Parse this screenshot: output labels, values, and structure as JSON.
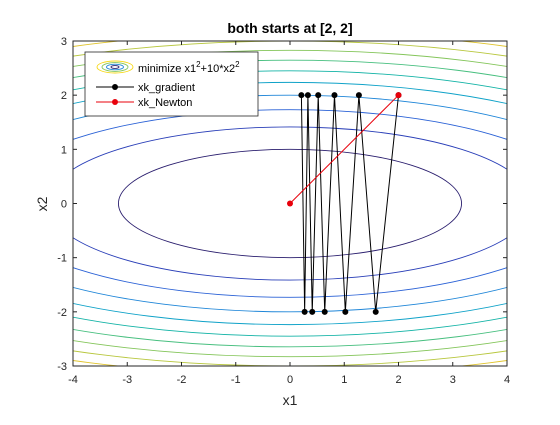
{
  "chart_data": {
    "type": "line",
    "title": "both starts at [2, 2]",
    "xlabel": "x1",
    "ylabel": "x2",
    "xlim": [
      -4,
      4
    ],
    "ylim": [
      -3,
      3
    ],
    "x_ticks": [
      -4,
      -3,
      -2,
      -1,
      0,
      1,
      2,
      3,
      4
    ],
    "y_ticks": [
      -3,
      -2,
      -1,
      0,
      1,
      2,
      3
    ],
    "grid": false,
    "legend_position": "top-left",
    "contours": {
      "function": "x1^2 + 10*x2^2",
      "levels": [
        10,
        20,
        30,
        40,
        50,
        60,
        70,
        80,
        90,
        100,
        110
      ],
      "colors": [
        "#2a1e6e",
        "#2a3fb8",
        "#2b62d6",
        "#1f86d8",
        "#0fa2c8",
        "#13b3a6",
        "#47bf7f",
        "#84c55a",
        "#b8c73e",
        "#e0c42e",
        "#f6d818"
      ]
    },
    "series": [
      {
        "name": "xk_gradient",
        "color": "#000000",
        "marker": "circle",
        "points": [
          [
            2.0,
            2.0
          ],
          [
            1.58,
            -2.0
          ],
          [
            1.27,
            2.0
          ],
          [
            1.02,
            -2.0
          ],
          [
            0.82,
            2.0
          ],
          [
            0.64,
            -2.0
          ],
          [
            0.52,
            2.0
          ],
          [
            0.41,
            -2.0
          ],
          [
            0.33,
            2.0
          ],
          [
            0.27,
            -2.0
          ],
          [
            0.21,
            2.0
          ]
        ]
      },
      {
        "name": "xk_Newton",
        "color": "#e8000b",
        "marker": "circle",
        "points": [
          [
            2.0,
            2.0
          ],
          [
            0.0,
            0.0
          ]
        ]
      }
    ],
    "legend": {
      "contour_label_base": "minimize x1",
      "contour_label_exp1": "2",
      "contour_label_mid": "+10*x2",
      "contour_label_exp2": "2",
      "series_labels": [
        "xk_gradient",
        "xk_Newton"
      ]
    }
  }
}
